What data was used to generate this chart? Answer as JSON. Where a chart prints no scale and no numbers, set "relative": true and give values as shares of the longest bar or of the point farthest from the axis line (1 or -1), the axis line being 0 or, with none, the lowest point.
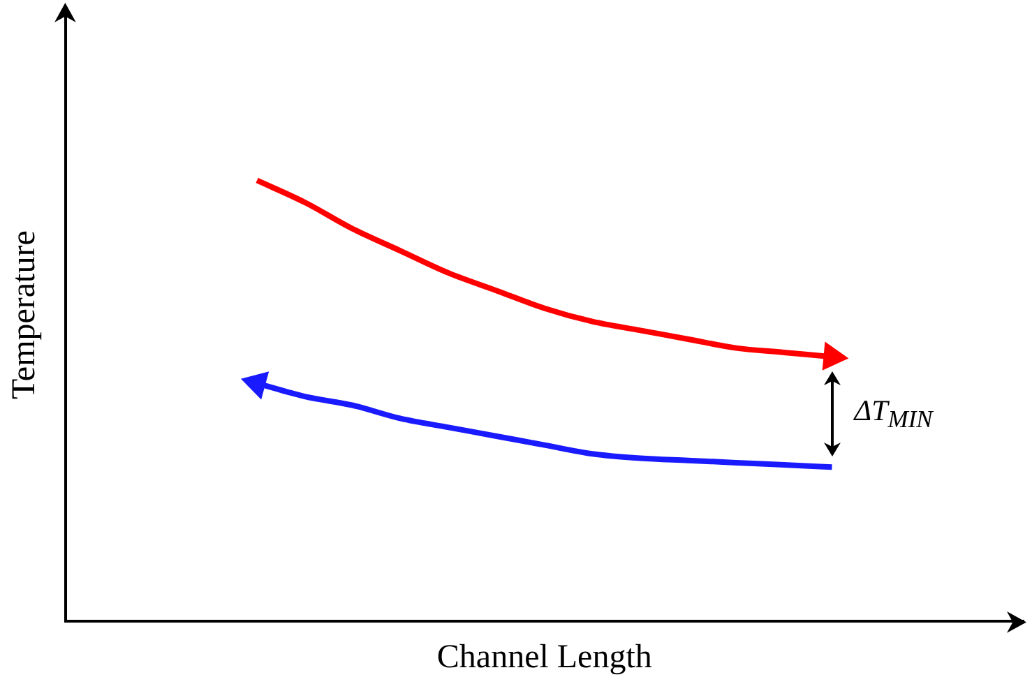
{
  "chart_data": {
    "type": "line",
    "relative": true,
    "xlabel": "Channel Length",
    "ylabel": "Temperature",
    "annotations": [
      "ΔT$_{MIN}$"
    ],
    "grid": false,
    "legend": false,
    "categories": [
      null,
      null,
      null,
      null,
      null,
      null,
      null,
      null,
      null,
      null,
      null,
      null,
      null,
      null,
      null,
      null,
      null,
      null,
      null,
      null,
      null
    ],
    "series": [
      {
        "color": "#ff0000",
        "values": [
          null,
          null,
          null,
          null,
          1.0,
          0.95,
          0.89,
          0.84,
          0.79,
          0.75,
          0.71,
          0.68,
          0.66,
          0.64,
          0.62,
          0.61,
          0.6,
          null,
          null,
          null,
          null
        ]
      },
      {
        "color": "#1a1aff",
        "values": [
          null,
          null,
          null,
          null,
          0.54,
          0.51,
          0.49,
          0.46,
          0.44,
          0.42,
          0.4,
          0.38,
          0.37,
          0.365,
          0.36,
          0.355,
          0.35,
          null,
          null,
          null,
          null
        ]
      }
    ]
  }
}
